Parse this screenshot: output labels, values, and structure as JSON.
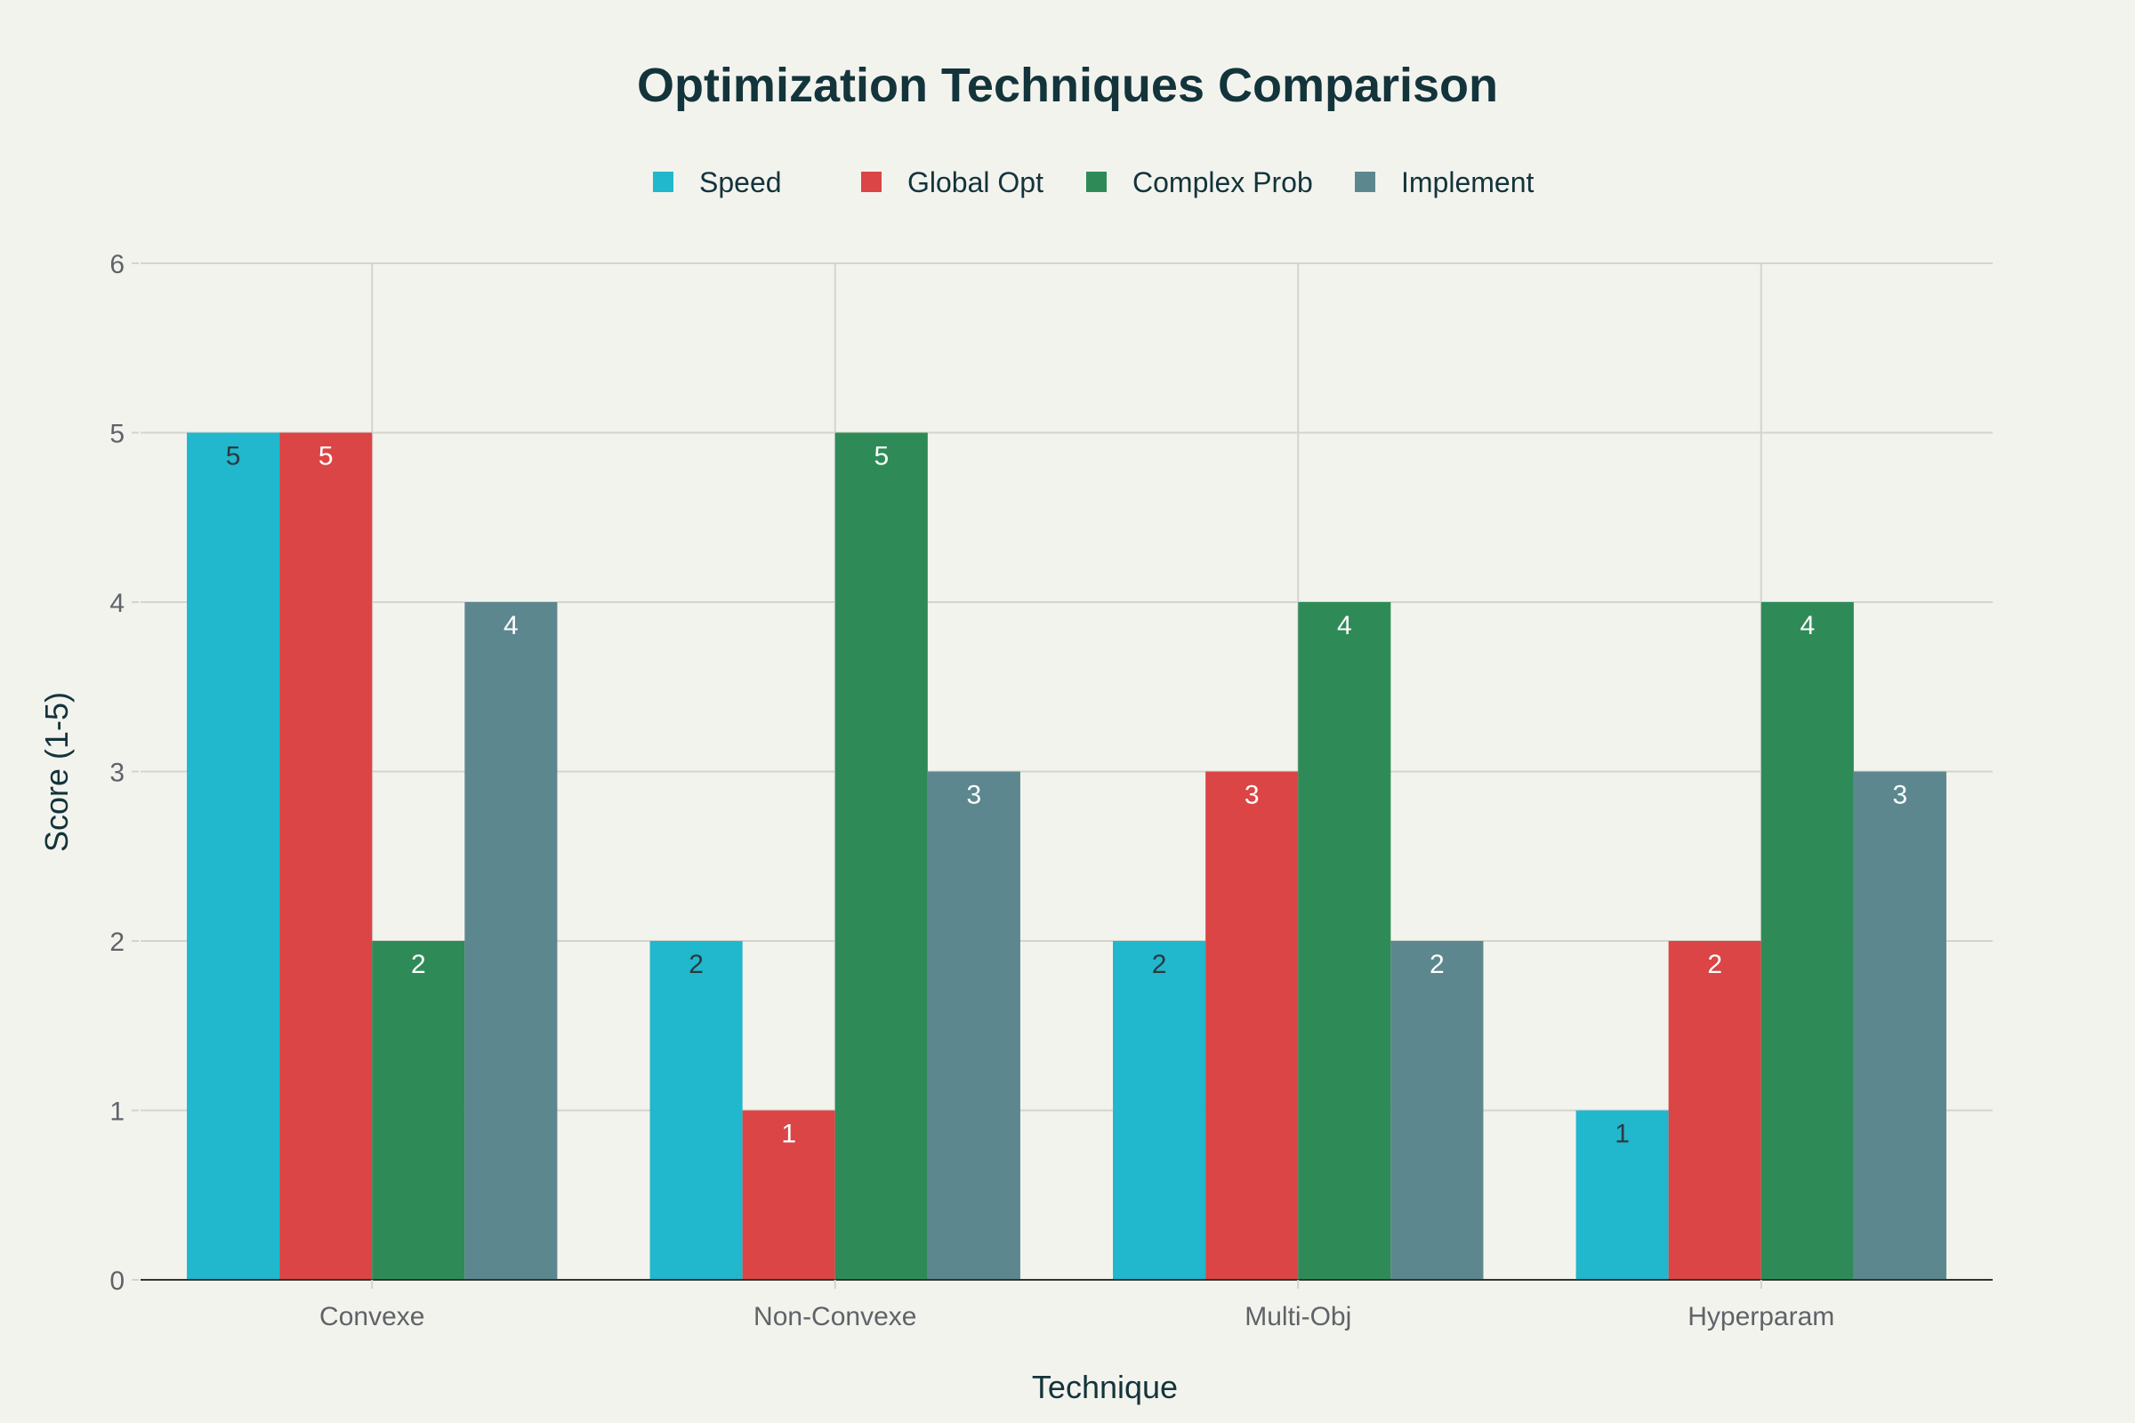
{
  "chart_data": {
    "type": "bar",
    "title": "Optimization Techniques Comparison",
    "xlabel": "Technique",
    "ylabel": "Score (1-5)",
    "categories": [
      "Convexe",
      "Non-Convexe",
      "Multi-Obj",
      "Hyperparam"
    ],
    "series": [
      {
        "name": "Speed",
        "color": "#21b7cc",
        "label_color": "#2b3a42",
        "values": [
          5,
          2,
          2,
          1
        ]
      },
      {
        "name": "Global Opt",
        "color": "#db4545",
        "label_color": "#ffffff",
        "values": [
          5,
          1,
          3,
          2
        ]
      },
      {
        "name": "Complex Prob",
        "color": "#2e8b57",
        "label_color": "#ffffff",
        "values": [
          2,
          5,
          4,
          4
        ]
      },
      {
        "name": "Implement",
        "color": "#5d878f",
        "label_color": "#ffffff",
        "values": [
          4,
          3,
          2,
          3
        ]
      }
    ],
    "ylim": [
      0,
      6
    ],
    "yticks": [
      0,
      1,
      2,
      3,
      4,
      5,
      6
    ],
    "grid": true,
    "legend_position": "top-center",
    "data_labels": "inside-end"
  },
  "colors": {
    "background": "#f3f3ee",
    "title": "#13343b",
    "axis_text": "#5f6368",
    "grid": "#d4d4cf",
    "axis_line": "#333333"
  }
}
